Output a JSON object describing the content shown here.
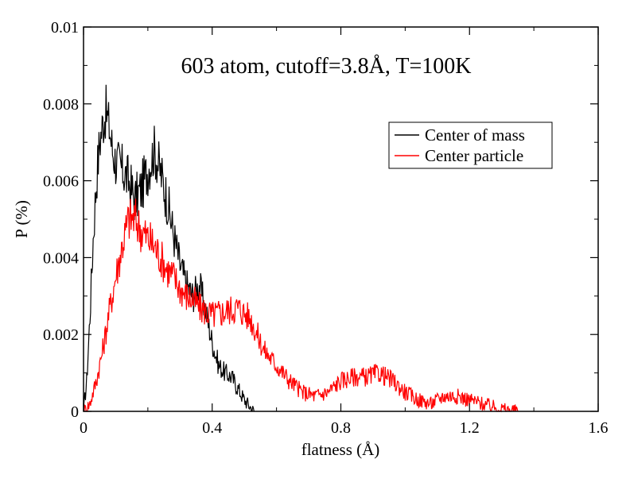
{
  "chart_data": {
    "type": "line",
    "title": "603 atom, cutoff=3.8Å, T=100K",
    "xlabel": "flatness (Å)",
    "ylabel": "P (%)",
    "xlim": [
      0,
      1.6
    ],
    "ylim": [
      0,
      0.01
    ],
    "x_ticks": [
      "0",
      "0.4",
      "0.8",
      "1.2",
      "1.6"
    ],
    "y_ticks": [
      "0",
      "0.002",
      "0.004",
      "0.006",
      "0.008",
      "0.01"
    ],
    "grid": false,
    "legend": "top-right",
    "series": [
      {
        "name": "Center of mass",
        "color": "#000000",
        "x": [
          0.0,
          0.01,
          0.02,
          0.03,
          0.04,
          0.05,
          0.06,
          0.07,
          0.08,
          0.09,
          0.1,
          0.12,
          0.14,
          0.16,
          0.18,
          0.2,
          0.22,
          0.24,
          0.26,
          0.28,
          0.3,
          0.32,
          0.34,
          0.36,
          0.38,
          0.4,
          0.42,
          0.44,
          0.46,
          0.48,
          0.5,
          0.52,
          0.53
        ],
        "values": [
          0.0,
          0.0008,
          0.0025,
          0.0045,
          0.006,
          0.007,
          0.0075,
          0.0078,
          0.0074,
          0.0068,
          0.0065,
          0.0063,
          0.006,
          0.0055,
          0.0058,
          0.0063,
          0.0068,
          0.0062,
          0.0055,
          0.0046,
          0.0038,
          0.0033,
          0.003,
          0.0033,
          0.0026,
          0.0018,
          0.0012,
          0.001,
          0.0009,
          0.0006,
          0.0003,
          0.0001,
          0.0
        ]
      },
      {
        "name": "Center particle",
        "color": "#ff0000",
        "x": [
          0.0,
          0.02,
          0.04,
          0.06,
          0.08,
          0.1,
          0.12,
          0.14,
          0.16,
          0.18,
          0.2,
          0.22,
          0.24,
          0.26,
          0.28,
          0.3,
          0.32,
          0.34,
          0.36,
          0.38,
          0.4,
          0.44,
          0.48,
          0.52,
          0.56,
          0.6,
          0.64,
          0.68,
          0.72,
          0.76,
          0.8,
          0.84,
          0.88,
          0.92,
          0.96,
          1.0,
          1.04,
          1.08,
          1.12,
          1.16,
          1.2,
          1.24,
          1.28,
          1.32,
          1.35
        ],
        "values": [
          0.0,
          0.0002,
          0.0008,
          0.0016,
          0.0026,
          0.0035,
          0.0043,
          0.005,
          0.005,
          0.0047,
          0.0045,
          0.0043,
          0.004,
          0.0037,
          0.0035,
          0.0032,
          0.003,
          0.0029,
          0.0027,
          0.0026,
          0.0025,
          0.0026,
          0.0027,
          0.0024,
          0.0016,
          0.0012,
          0.0008,
          0.0005,
          0.0004,
          0.0005,
          0.0008,
          0.0009,
          0.0009,
          0.001,
          0.0008,
          0.0005,
          0.0003,
          0.0002,
          0.0004,
          0.0004,
          0.0003,
          0.0002,
          0.0001,
          3e-05,
          0.0
        ]
      }
    ]
  }
}
